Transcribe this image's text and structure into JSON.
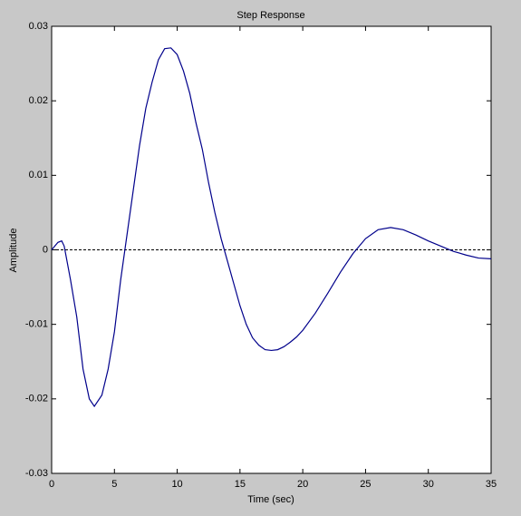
{
  "chart_data": {
    "type": "line",
    "title": "Step Response",
    "x_label": "Time (sec)",
    "y_label": "Amplitude",
    "x": [
      0,
      0.5,
      0.8,
      1,
      1.5,
      2,
      2.5,
      3,
      3.4,
      4,
      4.5,
      5,
      5.5,
      6,
      6.5,
      7,
      7.5,
      8,
      8.5,
      9,
      9.5,
      10,
      10.5,
      11,
      11.5,
      12,
      12.5,
      13,
      13.5,
      14,
      14.5,
      15,
      15.5,
      16,
      16.5,
      17,
      17.5,
      18,
      18.5,
      19,
      19.5,
      20,
      21,
      22,
      23,
      24,
      25,
      26,
      27,
      28,
      29,
      30,
      31,
      32,
      33,
      34,
      35
    ],
    "series": [
      {
        "color": "#00008b",
        "values": [
          0,
          0.001,
          0.0012,
          0.0005,
          -0.004,
          -0.009,
          -0.016,
          -0.02,
          -0.021,
          -0.0195,
          -0.016,
          -0.011,
          -0.004,
          0.002,
          0.008,
          0.014,
          0.019,
          0.0225,
          0.0255,
          0.027,
          0.0271,
          0.0262,
          0.024,
          0.021,
          0.017,
          0.0135,
          0.009,
          0.005,
          0.0015,
          -0.0015,
          -0.0045,
          -0.0075,
          -0.01,
          -0.0118,
          -0.0128,
          -0.0134,
          -0.0135,
          -0.0134,
          -0.013,
          -0.0124,
          -0.0117,
          -0.0108,
          -0.0085,
          -0.0058,
          -0.003,
          -0.0005,
          0.0015,
          0.0027,
          0.003,
          0.0027,
          0.002,
          0.0012,
          0.0005,
          -0.0002,
          -0.0007,
          -0.0011,
          -0.0012
        ]
      }
    ],
    "reference_line": 0,
    "xlim": [
      0,
      35
    ],
    "xticks": [
      0,
      5,
      10,
      15,
      20,
      25,
      30,
      35
    ],
    "ylim": [
      -0.03,
      0.03
    ],
    "yticks": [
      -0.03,
      -0.02,
      -0.01,
      0,
      0.01,
      0.02,
      0.03
    ]
  }
}
